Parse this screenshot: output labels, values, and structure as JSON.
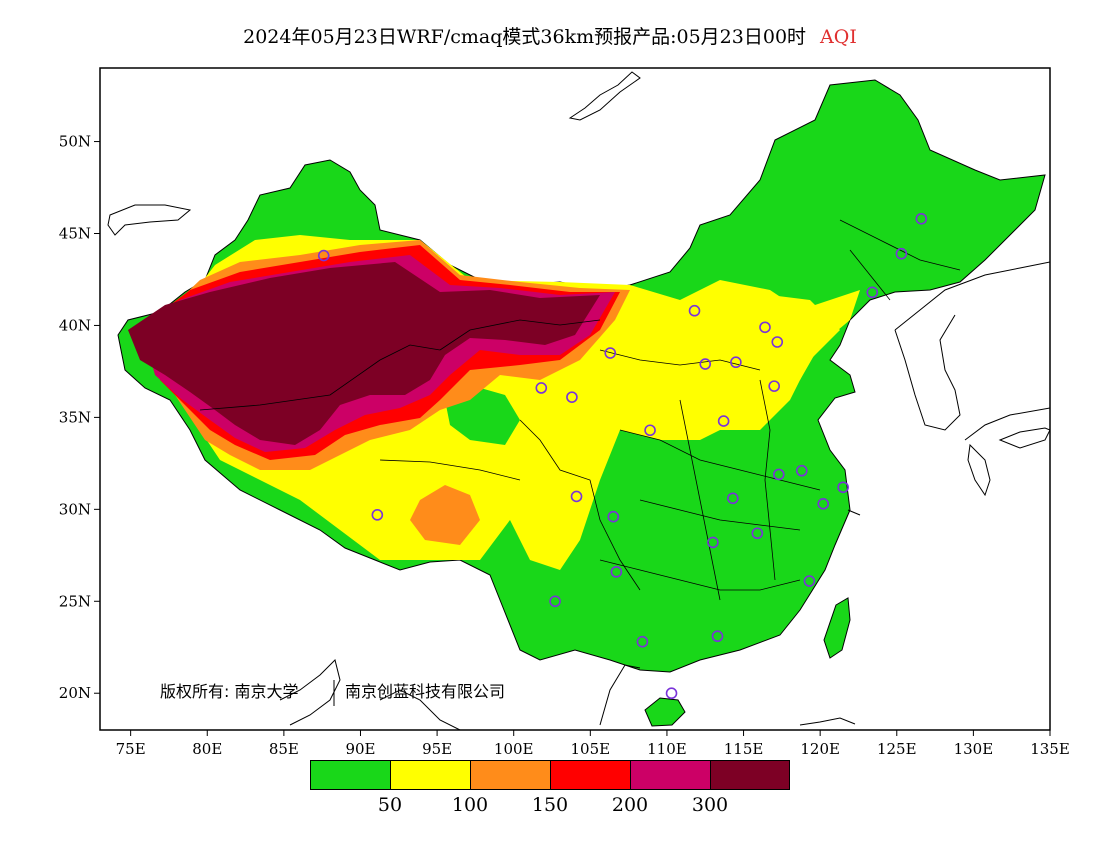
{
  "title": {
    "main": "2024年05月23日WRF/cmaq模式36km预报产品:05月23日00时",
    "variable": "AQI",
    "variable_color": "#e03030"
  },
  "copyright": {
    "left": "版权所有: 南京大学",
    "right": "南京创蓝科技有限公司"
  },
  "axes": {
    "x_ticks": [
      "75E",
      "80E",
      "85E",
      "90E",
      "95E",
      "100E",
      "105E",
      "110E",
      "115E",
      "120E",
      "125E",
      "130E",
      "135E"
    ],
    "y_ticks": [
      "20N",
      "25N",
      "30N",
      "35N",
      "40N",
      "45N",
      "50N"
    ],
    "lon_range": [
      73,
      135
    ],
    "lat_range": [
      18,
      54
    ]
  },
  "legend": {
    "colors": [
      "#19d719",
      "#ffff00",
      "#ff8c1a",
      "#ff0000",
      "#cc0066",
      "#7d0025"
    ],
    "labels": [
      "50",
      "100",
      "150",
      "200",
      "300"
    ]
  },
  "stations": [
    [
      87.6,
      43.8
    ],
    [
      101.8,
      36.6
    ],
    [
      103.8,
      36.1
    ],
    [
      106.3,
      38.5
    ],
    [
      111.8,
      40.8
    ],
    [
      112.5,
      37.9
    ],
    [
      114.5,
      38.0
    ],
    [
      116.4,
      39.9
    ],
    [
      117.2,
      39.1
    ],
    [
      117.0,
      36.7
    ],
    [
      113.7,
      34.8
    ],
    [
      108.9,
      34.3
    ],
    [
      104.1,
      30.7
    ],
    [
      106.5,
      29.6
    ],
    [
      114.3,
      30.6
    ],
    [
      117.3,
      31.9
    ],
    [
      118.8,
      32.1
    ],
    [
      121.5,
      31.2
    ],
    [
      120.2,
      30.3
    ],
    [
      115.9,
      28.7
    ],
    [
      113.0,
      28.2
    ],
    [
      106.7,
      26.6
    ],
    [
      102.7,
      25.0
    ],
    [
      108.4,
      22.8
    ],
    [
      113.3,
      23.1
    ],
    [
      119.3,
      26.1
    ],
    [
      110.3,
      20.0
    ],
    [
      91.1,
      29.7
    ],
    [
      123.4,
      41.8
    ],
    [
      125.3,
      43.9
    ],
    [
      126.6,
      45.8
    ]
  ]
}
